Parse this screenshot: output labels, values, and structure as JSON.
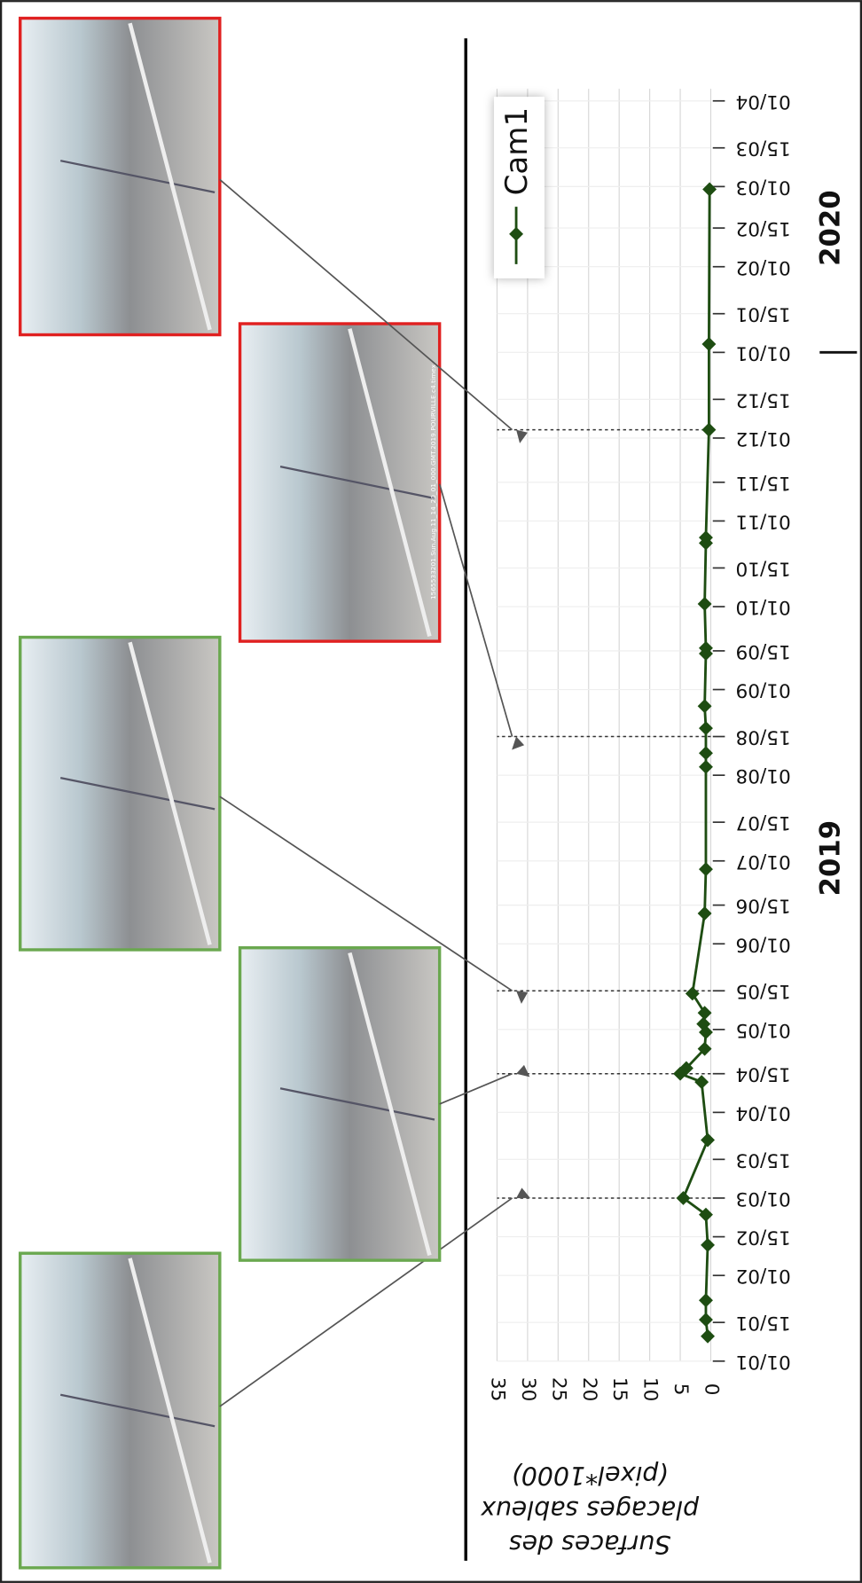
{
  "chart_data": {
    "type": "line",
    "ylabel": [
      "Surfaces des",
      "placages sableux",
      "(pixel*1000)"
    ],
    "xlim": [
      0,
      456
    ],
    "xticks": [
      {
        "value": 0,
        "label": "01/01"
      },
      {
        "value": 14,
        "label": "15/01"
      },
      {
        "value": 31,
        "label": "01/02"
      },
      {
        "value": 45,
        "label": "15/02"
      },
      {
        "value": 59,
        "label": "01/03"
      },
      {
        "value": 73,
        "label": "15/03"
      },
      {
        "value": 90,
        "label": "01/04"
      },
      {
        "value": 104,
        "label": "15/04"
      },
      {
        "value": 120,
        "label": "01/05"
      },
      {
        "value": 134,
        "label": "15/05"
      },
      {
        "value": 151,
        "label": "01/06"
      },
      {
        "value": 165,
        "label": "15/06"
      },
      {
        "value": 181,
        "label": "01/07"
      },
      {
        "value": 195,
        "label": "15/07"
      },
      {
        "value": 212,
        "label": "01/08"
      },
      {
        "value": 226,
        "label": "15/08"
      },
      {
        "value": 243,
        "label": "01/09"
      },
      {
        "value": 257,
        "label": "15/09"
      },
      {
        "value": 273,
        "label": "01/10"
      },
      {
        "value": 287,
        "label": "15/10"
      },
      {
        "value": 304,
        "label": "01/11"
      },
      {
        "value": 318,
        "label": "15/11"
      },
      {
        "value": 334,
        "label": "01/12"
      },
      {
        "value": 348,
        "label": "15/12"
      },
      {
        "value": 365,
        "label": "01/01"
      },
      {
        "value": 379,
        "label": "15/01"
      },
      {
        "value": 396,
        "label": "01/02"
      },
      {
        "value": 410,
        "label": "15/02"
      },
      {
        "value": 425,
        "label": "01/03"
      },
      {
        "value": 439,
        "label": "15/03"
      },
      {
        "value": 456,
        "label": "01/04"
      }
    ],
    "year_labels": [
      {
        "value": 182,
        "label": "2019"
      },
      {
        "value": 410,
        "label": "2020"
      }
    ],
    "year_separator": 365,
    "ylim": [
      0,
      35
    ],
    "yticks": [
      0,
      5,
      10,
      15,
      20,
      25,
      30,
      35
    ],
    "grid": true,
    "x": [
      9,
      15,
      22,
      42,
      53,
      59,
      80,
      101,
      104,
      106,
      113,
      119,
      122,
      126,
      133,
      162,
      178,
      215,
      220,
      229,
      237,
      256,
      258,
      274,
      296,
      298,
      337,
      368,
      424
    ],
    "series": [
      {
        "name": "Cam1",
        "color": "#1e4d12",
        "values": [
          0.5,
          0.8,
          0.8,
          0.5,
          0.8,
          4.5,
          0.5,
          1.5,
          5,
          4,
          1,
          0.8,
          1.2,
          1,
          3,
          1,
          0.8,
          0.8,
          0.8,
          0.8,
          1,
          0.8,
          0.8,
          1,
          0.8,
          0.8,
          0.3,
          0.3,
          0.2
        ]
      }
    ],
    "highlight_x": [
      59,
      104,
      134,
      226,
      337
    ],
    "photos": [
      {
        "border": "#6aa84f",
        "target": 0
      },
      {
        "border": "#6aa84f",
        "target": 1
      },
      {
        "border": "#6aa84f",
        "target": 2
      },
      {
        "border": "#e02020",
        "target": 3
      },
      {
        "border": "#e02020",
        "target": 4
      }
    ],
    "photo_caption": "1565533201.Sun.Aug.11_14_20_01_000.GMT.2019.POURVILLE.c4.timex"
  }
}
